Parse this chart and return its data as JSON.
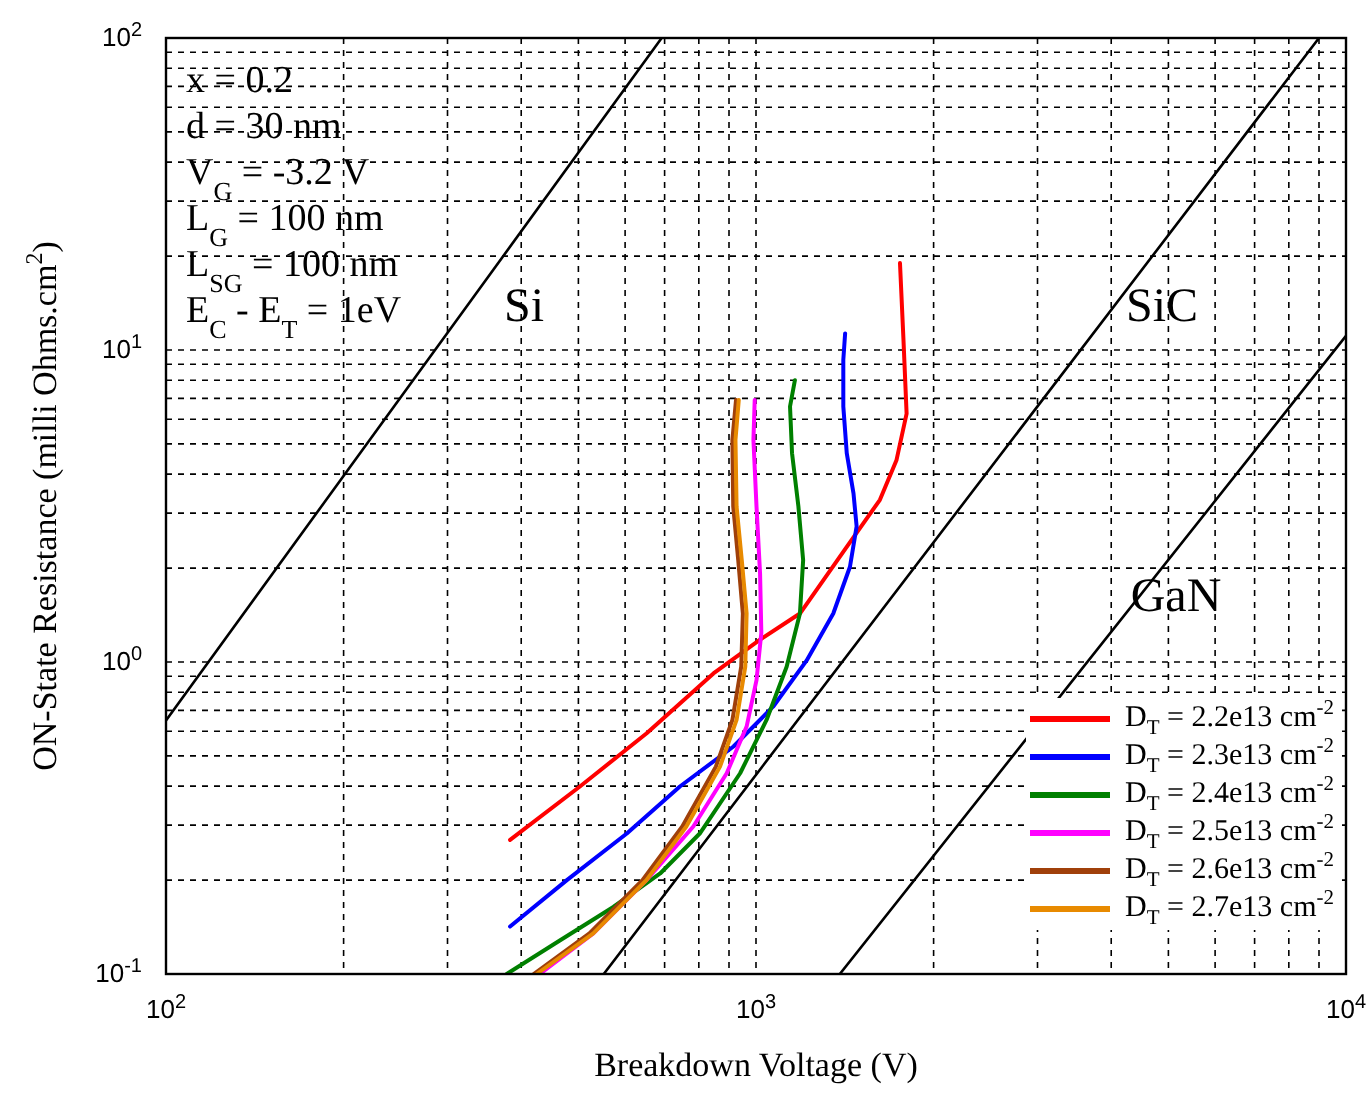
{
  "chart_data": {
    "type": "line",
    "xlabel": "Breakdown Voltage (V)",
    "ylabel": "ON-State Resistance (milli Ohms.cm$^{2}$)",
    "log": "xy",
    "grid": true,
    "legend": "bottom right",
    "marker": "none",
    "line_style": "solid",
    "xlim": [
      100,
      10000
    ],
    "ylim": [
      0.1,
      100
    ],
    "xticks": [
      {
        "value": 100,
        "label": "10$^{2}$"
      },
      {
        "value": 200,
        "label": null
      },
      {
        "value": 300,
        "label": null
      },
      {
        "value": 400,
        "label": null
      },
      {
        "value": 500,
        "label": null
      },
      {
        "value": 600,
        "label": null
      },
      {
        "value": 700,
        "label": null
      },
      {
        "value": 800,
        "label": null
      },
      {
        "value": 900,
        "label": null
      },
      {
        "value": 1000,
        "label": "10$^{3}$"
      },
      {
        "value": 2000,
        "label": null
      },
      {
        "value": 3000,
        "label": null
      },
      {
        "value": 4000,
        "label": null
      },
      {
        "value": 5000,
        "label": null
      },
      {
        "value": 6000,
        "label": null
      },
      {
        "value": 7000,
        "label": null
      },
      {
        "value": 8000,
        "label": null
      },
      {
        "value": 9000,
        "label": null
      },
      {
        "value": 10000,
        "label": "10$^{4}$"
      }
    ],
    "yticks": [
      {
        "value": 0.1,
        "label": "10$^{-1}$"
      },
      {
        "value": 0.2,
        "label": null
      },
      {
        "value": 0.3,
        "label": null
      },
      {
        "value": 0.4,
        "label": null
      },
      {
        "value": 0.5,
        "label": null
      },
      {
        "value": 0.6,
        "label": null
      },
      {
        "value": 0.7,
        "label": null
      },
      {
        "value": 0.8,
        "label": null
      },
      {
        "value": 0.9,
        "label": null
      },
      {
        "value": 1,
        "label": "10$^{0}$"
      },
      {
        "value": 2,
        "label": null
      },
      {
        "value": 3,
        "label": null
      },
      {
        "value": 4,
        "label": null
      },
      {
        "value": 5,
        "label": null
      },
      {
        "value": 6,
        "label": null
      },
      {
        "value": 7,
        "label": null
      },
      {
        "value": 8,
        "label": null
      },
      {
        "value": 9,
        "label": null
      },
      {
        "value": 10,
        "label": "10$^{1}$"
      },
      {
        "value": 20,
        "label": null
      },
      {
        "value": 30,
        "label": null
      },
      {
        "value": 40,
        "label": null
      },
      {
        "value": 50,
        "label": null
      },
      {
        "value": 60,
        "label": null
      },
      {
        "value": 70,
        "label": null
      },
      {
        "value": 80,
        "label": null
      },
      {
        "value": 90,
        "label": null
      },
      {
        "value": 100,
        "label": "10$^{2}$"
      }
    ],
    "series": [
      {
        "color": "#000000",
        "x": [
          100,
          692
        ],
        "values": [
          0.65,
          100
        ]
      },
      {
        "color": "#000000",
        "x": [
          552,
          9000
        ],
        "values": [
          0.1,
          100
        ]
      },
      {
        "color": "#000000",
        "x": [
          1387,
          10000
        ],
        "values": [
          0.1,
          11.1
        ]
      },
      {
        "name": "D$_{T}$ = 2.2e13 cm$^{-2}$",
        "color": "#ff0000",
        "x": [
          383,
          503,
          652,
          847,
          1016,
          1187,
          1425,
          1622,
          1730,
          1800,
          1778,
          1754
        ],
        "values": [
          0.269,
          0.399,
          0.59,
          0.919,
          1.18,
          1.43,
          2.34,
          3.31,
          4.43,
          6.25,
          10.8,
          19
        ]
      },
      {
        "name": "D$_{T}$ = 2.3e13 cm$^{-2}$",
        "color": "#0000ff",
        "x": [
          383,
          478,
          604,
          743,
          916,
          1069,
          1218,
          1352,
          1443,
          1481,
          1463,
          1425,
          1406,
          1406,
          1416
        ],
        "values": [
          0.142,
          0.2,
          0.282,
          0.399,
          0.536,
          0.719,
          1.01,
          1.43,
          2.02,
          2.72,
          3.47,
          4.67,
          6.59,
          9.29,
          11.3
        ]
      },
      {
        "name": "D$_{T}$ = 2.4e13 cm$^{-2}$",
        "color": "#008000",
        "x": [
          378,
          465,
          573,
          688,
          803,
          940,
          1042,
          1127,
          1187,
          1202,
          1180,
          1151,
          1142,
          1164
        ],
        "values": [
          0.1,
          0.128,
          0.164,
          0.21,
          0.282,
          0.44,
          0.652,
          0.966,
          1.43,
          2.12,
          3.15,
          4.67,
          6.59,
          8
        ]
      },
      {
        "name": "D$_{T}$ = 2.5e13 cm$^{-2}$",
        "color": "#ff00ff",
        "x": [
          430,
          530,
          652,
          783,
          892,
          964,
          1002,
          1021,
          1016,
          1002,
          990,
          995
        ],
        "values": [
          0.1,
          0.135,
          0.2,
          0.297,
          0.44,
          0.621,
          0.875,
          1.24,
          1.92,
          3.15,
          5.15,
          6.92
        ]
      },
      {
        "name": "D$_{T}$ = 2.6e13 cm$^{-2}$",
        "color": "#a0400a",
        "x": [
          420,
          522,
          642,
          750,
          855,
          912,
          944,
          950,
          933,
          915,
          912,
          925
        ],
        "values": [
          0.1,
          0.135,
          0.2,
          0.297,
          0.462,
          0.652,
          0.966,
          1.43,
          2.12,
          3.15,
          5.15,
          6.92
        ]
      },
      {
        "name": "D$_{T}$ = 2.7e13 cm$^{-2}$",
        "color": "#e88a00",
        "x": [
          425,
          530,
          652,
          762,
          869,
          927,
          959,
          964,
          946,
          927,
          923,
          935
        ],
        "values": [
          0.1,
          0.135,
          0.2,
          0.297,
          0.462,
          0.652,
          0.966,
          1.43,
          2.12,
          3.15,
          5.15,
          6.92
        ]
      }
    ],
    "annotations": [
      "x = 0.2",
      "d = 30 nm",
      "V$_{G}$ = -3.2 V",
      "L$_{G}$ = 100 nm",
      "L$_{SG}$ = 100 nm",
      "E$_{C}$ - E$_{T}$ = 1eV",
      "Si",
      "SiC",
      "GaN"
    ]
  }
}
